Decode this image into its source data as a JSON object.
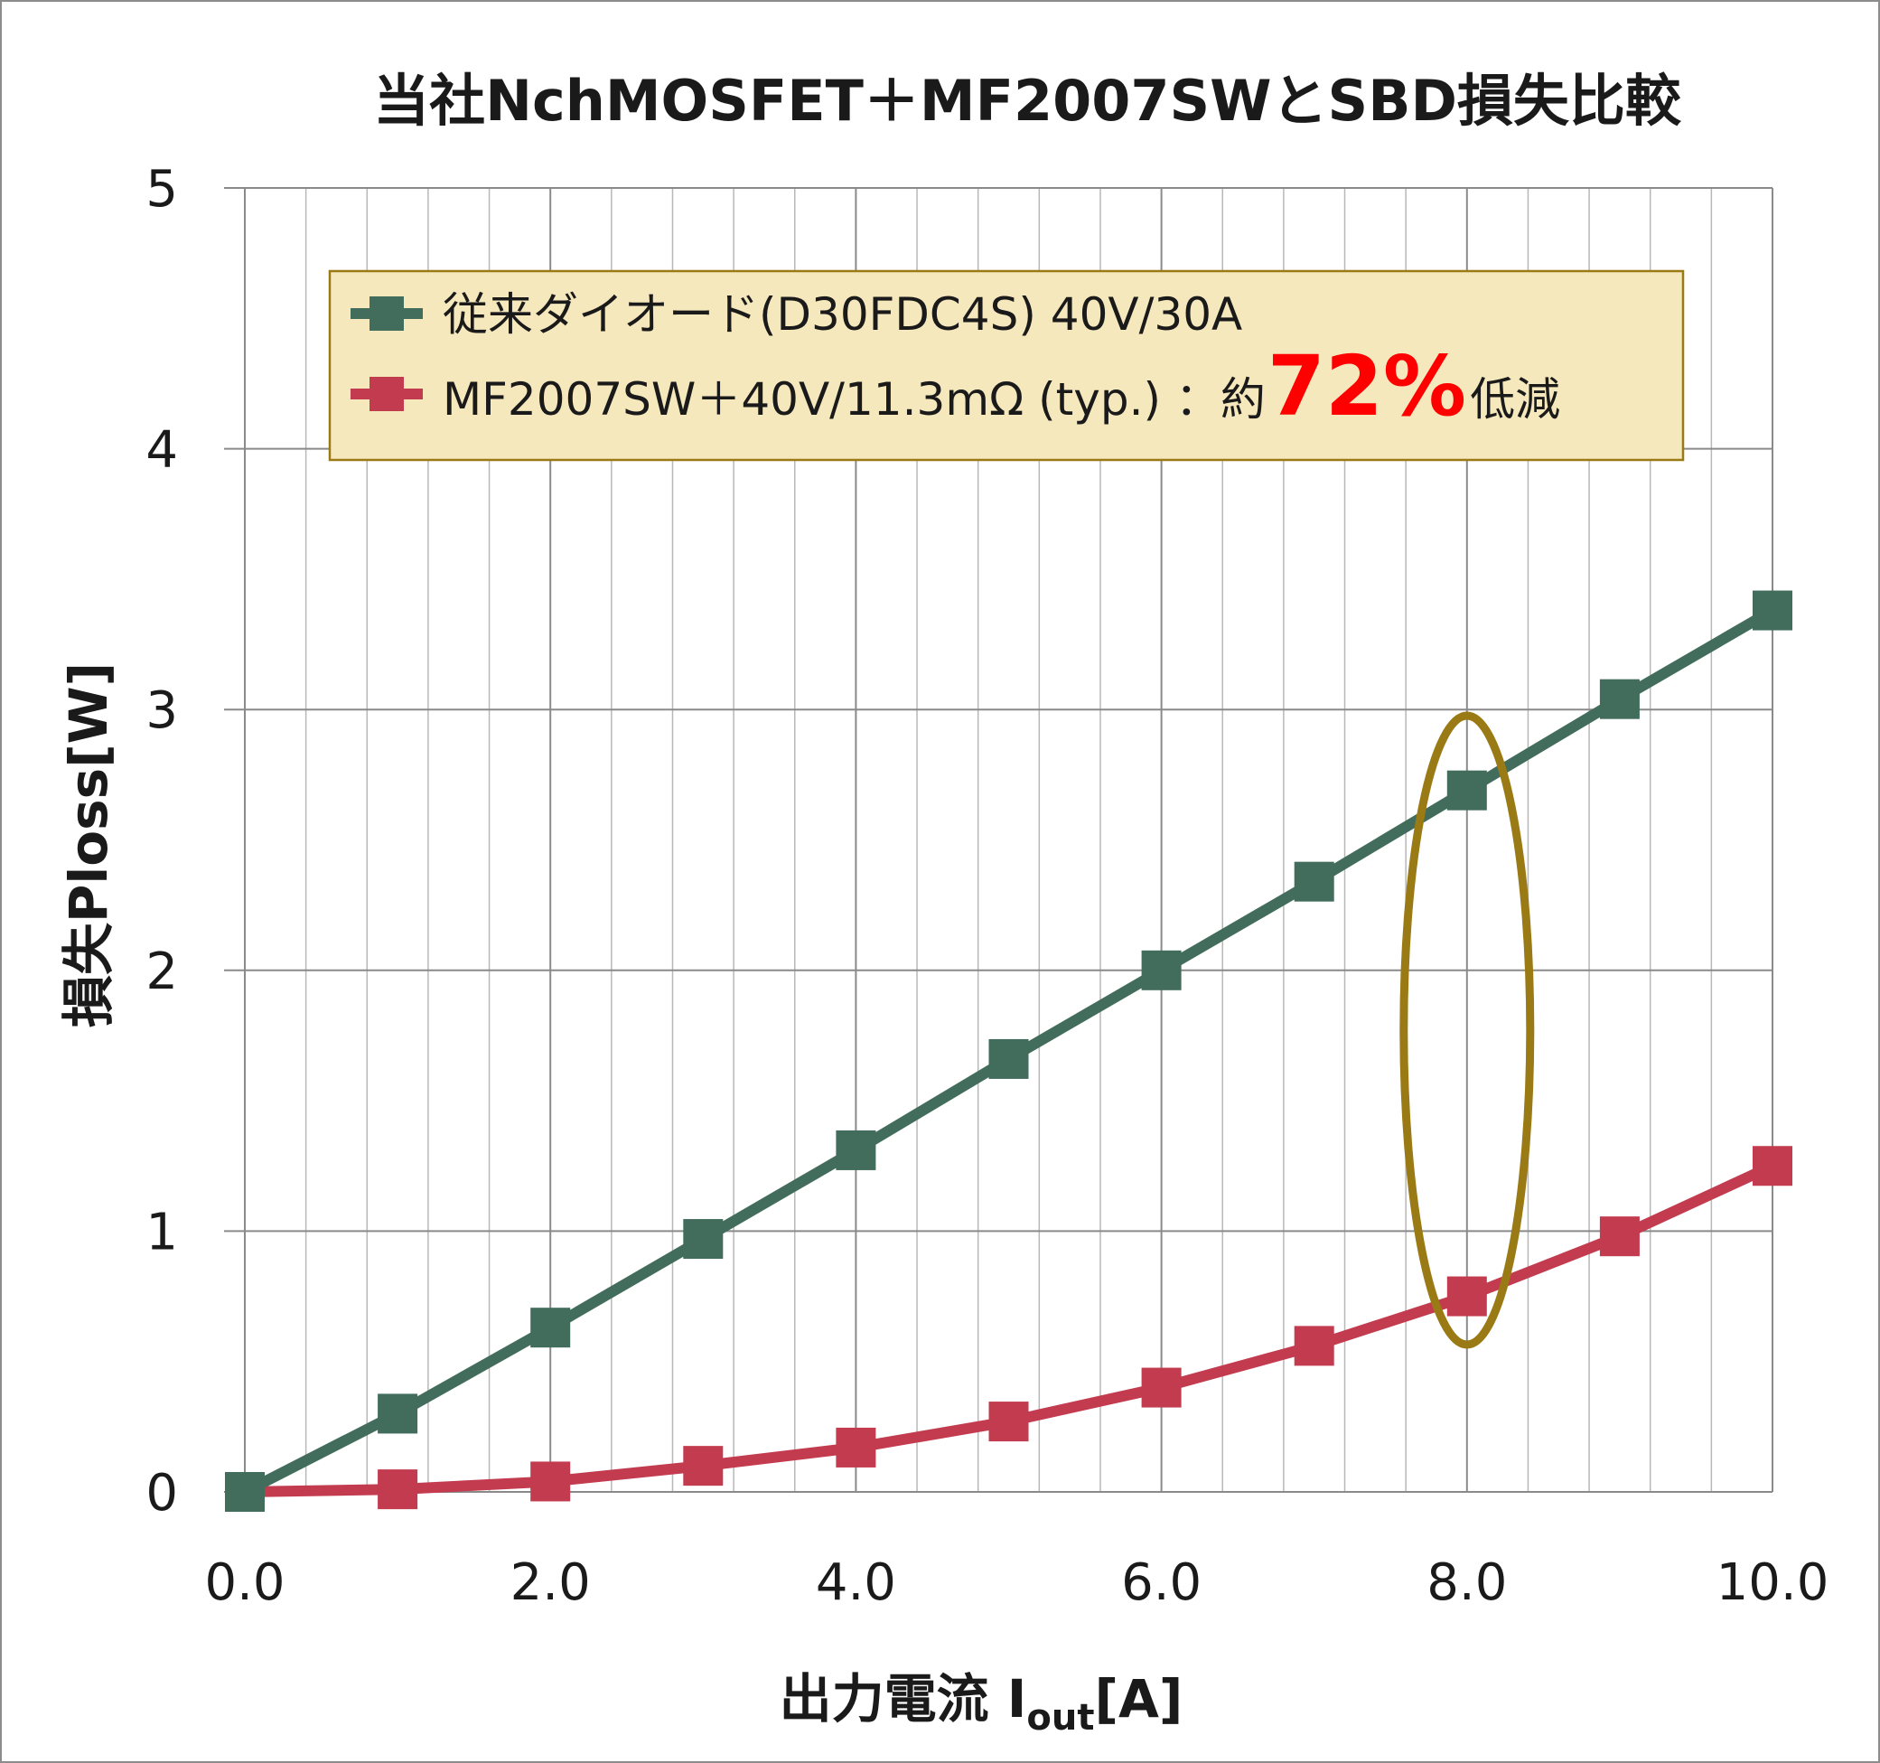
{
  "colors": {
    "series1": "#426c5b",
    "series2": "#c23b4e",
    "highlight": "#9a7a14",
    "legend_bg": "#f6e8bd",
    "legend_border": "#9a7a14",
    "percent": "#ff0000"
  },
  "chart_data": {
    "type": "line",
    "title": "当社NchMOSFET＋MF2007SWとSBD損失比較",
    "xlabel": "出力電流 I",
    "xlabel_sub": "out",
    "xlabel_unit": "[A]",
    "ylabel": "損失Ploss[W]",
    "xlim": [
      0,
      10
    ],
    "ylim": [
      0,
      5
    ],
    "x_ticks": [
      "0.0",
      "2.0",
      "4.0",
      "6.0",
      "8.0",
      "10.0"
    ],
    "y_ticks": [
      "0",
      "1",
      "2",
      "3",
      "4",
      "5"
    ],
    "grid": true,
    "legend_position": "top-left",
    "x": [
      0,
      1,
      2,
      3,
      4,
      5,
      6,
      7,
      8,
      9,
      10
    ],
    "series": [
      {
        "name": "従来ダイオード(D30FDC4S) 40V/30A",
        "values": [
          0,
          0.3,
          0.63,
          0.97,
          1.31,
          1.66,
          2.0,
          2.34,
          2.69,
          3.04,
          3.38
        ]
      },
      {
        "name": "MF2007SW＋40V/11.3mΩ (typ.) ：約",
        "values": [
          0,
          0.01,
          0.04,
          0.1,
          0.17,
          0.27,
          0.4,
          0.56,
          0.75,
          0.98,
          1.25
        ]
      }
    ],
    "annotation": {
      "prefix": "：約",
      "percent": "72%",
      "suffix": "低減",
      "highlight_x": 8
    }
  }
}
